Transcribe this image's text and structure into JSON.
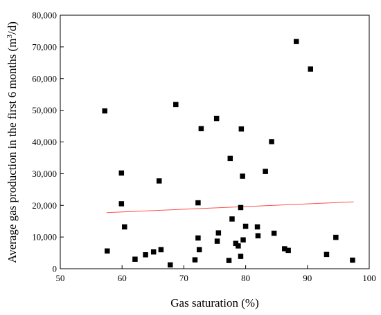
{
  "chart_data": {
    "type": "scatter",
    "xlabel": "Gas saturation (%)",
    "ylabel": "Average gas production in the first 6 months (m³/d)",
    "ylabel_parts": {
      "before": "Average gas production in the first 6 months (m",
      "sup": "3",
      "after": "/d)"
    },
    "xlim": [
      50,
      100
    ],
    "ylim": [
      0,
      80000
    ],
    "x_ticks": [
      50,
      60,
      70,
      80,
      90,
      100
    ],
    "x_tick_labels": [
      "50",
      "60",
      "70",
      "80",
      "90",
      "100"
    ],
    "y_ticks": [
      0,
      10000,
      20000,
      30000,
      40000,
      50000,
      60000,
      70000,
      80000
    ],
    "y_tick_labels": [
      "0",
      "10,000",
      "20,000",
      "30,000",
      "40,000",
      "50,000",
      "60,000",
      "70,000",
      "80,000"
    ],
    "grid": false,
    "legend": "none",
    "marker_color": "#000000",
    "trendline": {
      "color": "#ff4d4d",
      "x": [
        57.5,
        97.5
      ],
      "y": [
        17700,
        21100
      ]
    },
    "points": [
      {
        "x": 57.2,
        "y": 49800
      },
      {
        "x": 57.6,
        "y": 5600
      },
      {
        "x": 59.9,
        "y": 30200
      },
      {
        "x": 59.9,
        "y": 20500
      },
      {
        "x": 60.4,
        "y": 13200
      },
      {
        "x": 62.1,
        "y": 3000
      },
      {
        "x": 63.8,
        "y": 4400
      },
      {
        "x": 65.1,
        "y": 5300
      },
      {
        "x": 66.0,
        "y": 27700
      },
      {
        "x": 66.3,
        "y": 6000
      },
      {
        "x": 67.8,
        "y": 1200
      },
      {
        "x": 68.7,
        "y": 51800
      },
      {
        "x": 71.8,
        "y": 2800
      },
      {
        "x": 72.3,
        "y": 20800
      },
      {
        "x": 72.3,
        "y": 9700
      },
      {
        "x": 72.5,
        "y": 6000
      },
      {
        "x": 72.8,
        "y": 44200
      },
      {
        "x": 75.3,
        "y": 47400
      },
      {
        "x": 75.4,
        "y": 8700
      },
      {
        "x": 75.6,
        "y": 11300
      },
      {
        "x": 77.3,
        "y": 2600
      },
      {
        "x": 77.5,
        "y": 34800
      },
      {
        "x": 77.8,
        "y": 15700
      },
      {
        "x": 78.4,
        "y": 8000
      },
      {
        "x": 78.8,
        "y": 7200
      },
      {
        "x": 79.2,
        "y": 19300
      },
      {
        "x": 79.2,
        "y": 3900
      },
      {
        "x": 79.3,
        "y": 44100
      },
      {
        "x": 79.5,
        "y": 29200
      },
      {
        "x": 79.6,
        "y": 9100
      },
      {
        "x": 80.0,
        "y": 13400
      },
      {
        "x": 81.9,
        "y": 13200
      },
      {
        "x": 82.0,
        "y": 10400
      },
      {
        "x": 83.2,
        "y": 30700
      },
      {
        "x": 84.2,
        "y": 40100
      },
      {
        "x": 84.6,
        "y": 11200
      },
      {
        "x": 86.3,
        "y": 6300
      },
      {
        "x": 86.9,
        "y": 5800
      },
      {
        "x": 88.2,
        "y": 71700
      },
      {
        "x": 90.5,
        "y": 63000
      },
      {
        "x": 93.1,
        "y": 4500
      },
      {
        "x": 94.6,
        "y": 9900
      },
      {
        "x": 97.3,
        "y": 2700
      }
    ]
  }
}
